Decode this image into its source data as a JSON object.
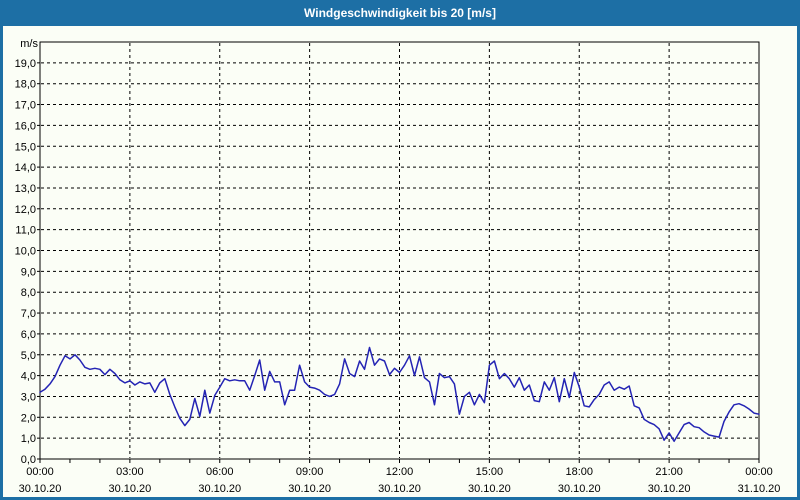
{
  "window": {
    "title": "Windgeschwindigkeit bis 20 [m/s]"
  },
  "colors": {
    "titlebar_bg": "#1d6fa5",
    "frame": "#1d6fa5",
    "title_text": "#ffffff",
    "background": "#fbfef6",
    "plot_border": "#000000",
    "grid": "#000000",
    "axis_text": "#000000",
    "line": "#2424b4"
  },
  "chart_data": {
    "type": "line",
    "title": "Windgeschwindigkeit bis 20 [m/s]",
    "unit_label": "m/s",
    "grid": "dashed",
    "legend": "none",
    "ylim": [
      0,
      20
    ],
    "y_tick_step": 1.0,
    "y_tick_labels": [
      "0,0",
      "1,0",
      "2,0",
      "3,0",
      "4,0",
      "5,0",
      "6,0",
      "7,0",
      "8,0",
      "9,0",
      "10,0",
      "11,0",
      "12,0",
      "13,0",
      "14,0",
      "15,0",
      "16,0",
      "17,0",
      "18,0",
      "19,0"
    ],
    "x_range_hours": [
      0,
      24
    ],
    "x_minor_tick_every_hours": 1,
    "x_ticks": [
      {
        "hour": 0,
        "time": "00:00",
        "date": "30.10.20"
      },
      {
        "hour": 3,
        "time": "03:00",
        "date": "30.10.20"
      },
      {
        "hour": 6,
        "time": "06:00",
        "date": "30.10.20"
      },
      {
        "hour": 9,
        "time": "09:00",
        "date": "30.10.20"
      },
      {
        "hour": 12,
        "time": "12:00",
        "date": "30.10.20"
      },
      {
        "hour": 15,
        "time": "15:00",
        "date": "30.10.20"
      },
      {
        "hour": 18,
        "time": "18:00",
        "date": "30.10.20"
      },
      {
        "hour": 21,
        "time": "21:00",
        "date": "30.10.20"
      },
      {
        "hour": 24,
        "time": "00:00",
        "date": "31.10.20"
      }
    ],
    "series_name": "Windgeschwindigkeit",
    "interval_minutes": 10,
    "values": [
      3.2,
      3.35,
      3.6,
      3.95,
      4.5,
      4.95,
      4.8,
      5.0,
      4.75,
      4.4,
      4.3,
      4.35,
      4.3,
      4.05,
      4.3,
      4.1,
      3.8,
      3.65,
      3.75,
      3.55,
      3.7,
      3.6,
      3.65,
      3.2,
      3.65,
      3.85,
      3.1,
      2.5,
      1.95,
      1.6,
      1.9,
      2.9,
      2.05,
      3.3,
      2.2,
      3.05,
      3.45,
      3.85,
      3.75,
      3.8,
      3.75,
      3.75,
      3.3,
      4.0,
      4.75,
      3.3,
      4.2,
      3.7,
      3.7,
      2.6,
      3.3,
      3.3,
      4.5,
      3.7,
      3.45,
      3.4,
      3.3,
      3.1,
      3.0,
      3.1,
      3.6,
      4.8,
      4.1,
      3.95,
      4.7,
      4.3,
      5.35,
      4.5,
      4.8,
      4.7,
      4.05,
      4.35,
      4.15,
      4.5,
      4.95,
      4.0,
      4.9,
      3.9,
      3.7,
      2.6,
      4.1,
      3.9,
      3.95,
      3.6,
      2.15,
      3.0,
      3.2,
      2.6,
      3.1,
      2.7,
      4.5,
      4.7,
      3.85,
      4.1,
      3.85,
      3.45,
      3.9,
      3.3,
      3.55,
      2.8,
      2.75,
      3.7,
      3.3,
      3.9,
      2.75,
      3.85,
      2.95,
      4.15,
      3.45,
      2.55,
      2.5,
      2.85,
      3.1,
      3.55,
      3.7,
      3.3,
      3.45,
      3.35,
      3.5,
      2.55,
      2.45,
      1.9,
      1.75,
      1.65,
      1.45,
      0.9,
      1.25,
      0.85,
      1.25,
      1.65,
      1.75,
      1.55,
      1.5,
      1.3,
      1.15,
      1.1,
      1.05,
      1.8,
      2.25,
      2.6,
      2.65,
      2.55,
      2.4,
      2.2,
      2.15
    ]
  }
}
